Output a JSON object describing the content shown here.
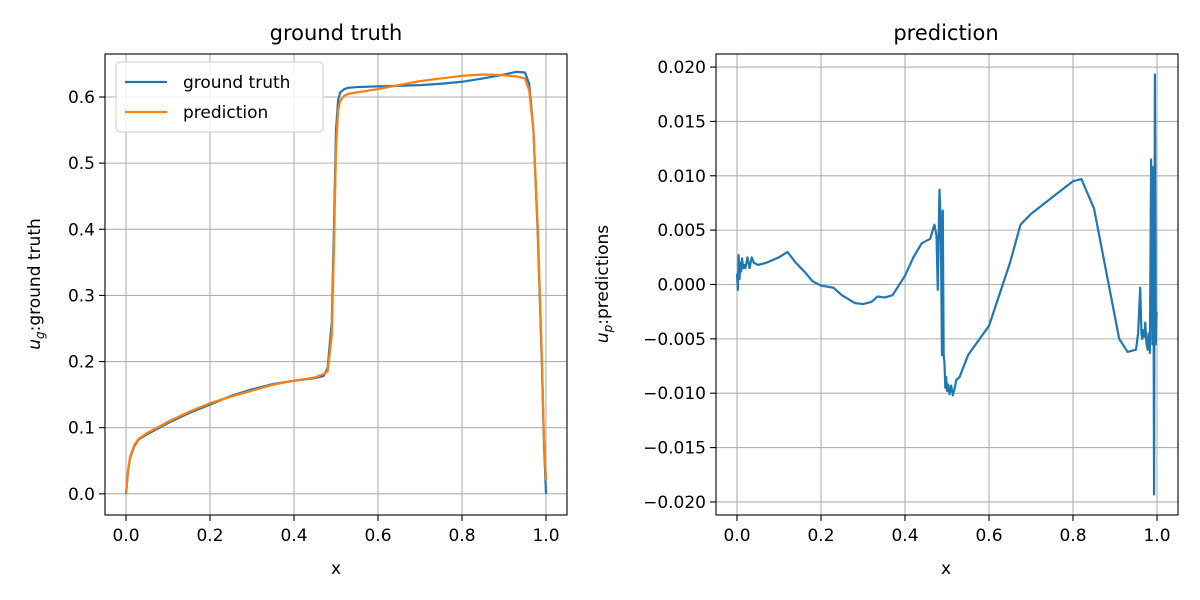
{
  "chart_data": [
    {
      "type": "line",
      "title": "ground truth",
      "xlabel": "x",
      "ylabel": "u_g:ground truth",
      "xlim": [
        -0.05,
        1.05
      ],
      "ylim": [
        -0.032,
        0.665
      ],
      "xticks": [
        0.0,
        0.2,
        0.4,
        0.6,
        0.8,
        1.0
      ],
      "xtick_labels": [
        "0.0",
        "0.2",
        "0.4",
        "0.6",
        "0.8",
        "1.0"
      ],
      "yticks": [
        0.0,
        0.1,
        0.2,
        0.3,
        0.4,
        0.5,
        0.6
      ],
      "ytick_labels": [
        "0.0",
        "0.1",
        "0.2",
        "0.3",
        "0.4",
        "0.5",
        "0.6"
      ],
      "grid": true,
      "legend_position": "top-left",
      "series": [
        {
          "name": "ground truth",
          "color": "#1f77b4",
          "x": [
            0.0,
            0.005,
            0.01,
            0.02,
            0.03,
            0.05,
            0.08,
            0.1,
            0.15,
            0.2,
            0.25,
            0.3,
            0.35,
            0.4,
            0.45,
            0.47,
            0.48,
            0.49,
            0.495,
            0.5,
            0.505,
            0.51,
            0.52,
            0.53,
            0.55,
            0.6,
            0.65,
            0.7,
            0.75,
            0.8,
            0.85,
            0.9,
            0.93,
            0.95,
            0.96,
            0.97,
            0.98,
            0.99,
            0.995,
            1.0
          ],
          "y": [
            0.0,
            0.035,
            0.055,
            0.072,
            0.082,
            0.09,
            0.1,
            0.107,
            0.122,
            0.135,
            0.148,
            0.158,
            0.166,
            0.171,
            0.175,
            0.178,
            0.19,
            0.26,
            0.4,
            0.55,
            0.595,
            0.607,
            0.612,
            0.614,
            0.615,
            0.616,
            0.617,
            0.618,
            0.62,
            0.623,
            0.628,
            0.634,
            0.638,
            0.637,
            0.62,
            0.55,
            0.4,
            0.2,
            0.08,
            0.0
          ]
        },
        {
          "name": "prediction",
          "color": "#ff7f0e",
          "x": [
            0.0,
            0.005,
            0.01,
            0.02,
            0.03,
            0.05,
            0.08,
            0.1,
            0.15,
            0.2,
            0.25,
            0.3,
            0.35,
            0.4,
            0.45,
            0.47,
            0.48,
            0.49,
            0.495,
            0.5,
            0.505,
            0.51,
            0.52,
            0.53,
            0.55,
            0.6,
            0.65,
            0.7,
            0.75,
            0.8,
            0.85,
            0.9,
            0.93,
            0.95,
            0.96,
            0.97,
            0.98,
            0.99,
            0.995,
            1.0
          ],
          "y": [
            0.001,
            0.036,
            0.057,
            0.074,
            0.083,
            0.092,
            0.102,
            0.109,
            0.124,
            0.137,
            0.147,
            0.156,
            0.165,
            0.171,
            0.176,
            0.181,
            0.185,
            0.24,
            0.37,
            0.52,
            0.58,
            0.594,
            0.602,
            0.605,
            0.607,
            0.612,
            0.618,
            0.624,
            0.628,
            0.632,
            0.634,
            0.633,
            0.631,
            0.628,
            0.61,
            0.55,
            0.41,
            0.21,
            0.09,
            0.02
          ]
        }
      ]
    },
    {
      "type": "line",
      "title": "prediction",
      "xlabel": "x",
      "ylabel": "u_p:predictions",
      "xlim": [
        -0.05,
        1.05
      ],
      "ylim": [
        -0.0212,
        0.0212
      ],
      "xticks": [
        0.0,
        0.2,
        0.4,
        0.6,
        0.8,
        1.0
      ],
      "xtick_labels": [
        "0.0",
        "0.2",
        "0.4",
        "0.6",
        "0.8",
        "1.0"
      ],
      "yticks": [
        -0.02,
        -0.015,
        -0.01,
        -0.005,
        0.0,
        0.005,
        0.01,
        0.015,
        0.02
      ],
      "ytick_labels": [
        "−0.020",
        "−0.015",
        "−0.010",
        "−0.005",
        "0.000",
        "0.005",
        "0.010",
        "0.015",
        "0.020"
      ],
      "grid": true,
      "series": [
        {
          "color": "#1f77b4",
          "x": [
            0.0,
            0.002,
            0.004,
            0.006,
            0.008,
            0.01,
            0.012,
            0.015,
            0.018,
            0.02,
            0.025,
            0.03,
            0.035,
            0.04,
            0.05,
            0.07,
            0.1,
            0.12,
            0.14,
            0.16,
            0.18,
            0.2,
            0.23,
            0.25,
            0.28,
            0.3,
            0.32,
            0.335,
            0.35,
            0.37,
            0.4,
            0.42,
            0.44,
            0.46,
            0.47,
            0.475,
            0.478,
            0.482,
            0.485,
            0.488,
            0.49,
            0.492,
            0.494,
            0.496,
            0.498,
            0.5,
            0.503,
            0.506,
            0.51,
            0.514,
            0.518,
            0.522,
            0.53,
            0.55,
            0.6,
            0.65,
            0.675,
            0.7,
            0.75,
            0.8,
            0.82,
            0.85,
            0.88,
            0.91,
            0.93,
            0.95,
            0.955,
            0.96,
            0.963,
            0.965,
            0.967,
            0.97,
            0.972,
            0.975,
            0.978,
            0.98,
            0.983,
            0.986,
            0.989,
            0.991,
            0.993,
            0.995,
            0.997,
            0.999
          ],
          "y": [
            0.001,
            -0.0005,
            0.0027,
            0.0005,
            0.002,
            0.0012,
            0.0024,
            0.0015,
            0.0018,
            0.0015,
            0.0025,
            0.0015,
            0.0025,
            0.002,
            0.0018,
            0.002,
            0.0025,
            0.003,
            0.002,
            0.0012,
            0.0003,
            -0.0001,
            -0.0003,
            -0.001,
            -0.0017,
            -0.0018,
            -0.0016,
            -0.0011,
            -0.0012,
            -0.001,
            0.0008,
            0.0025,
            0.0038,
            0.0042,
            0.0055,
            0.0045,
            -0.0005,
            0.0087,
            0.006,
            -0.0065,
            0.0068,
            -0.0065,
            -0.0072,
            -0.0095,
            -0.0085,
            -0.0098,
            -0.0092,
            -0.0101,
            -0.0093,
            -0.0102,
            -0.0096,
            -0.0088,
            -0.0085,
            -0.0065,
            -0.0038,
            0.002,
            0.0055,
            0.0065,
            0.008,
            0.0095,
            0.0097,
            0.007,
            0.001,
            -0.005,
            -0.0062,
            -0.006,
            -0.0045,
            -0.0003,
            -0.0045,
            -0.005,
            -0.0042,
            -0.0048,
            -0.0035,
            -0.0055,
            -0.006,
            -0.0045,
            -0.0063,
            0.0115,
            -0.0055,
            0.0108,
            -0.0193,
            0.0193,
            -0.0055,
            -0.0025
          ]
        }
      ]
    }
  ]
}
